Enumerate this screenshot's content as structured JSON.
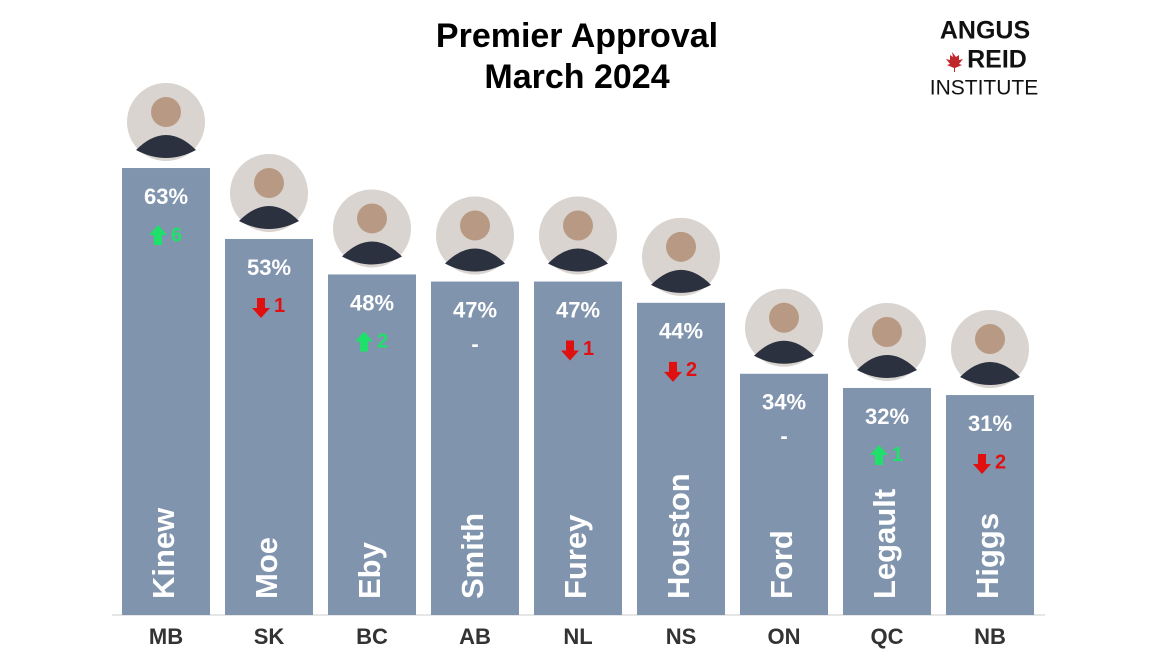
{
  "chart_data": {
    "type": "bar",
    "title": [
      "Premier Approval",
      "March 2024"
    ],
    "brand": [
      "ANGUS",
      "REID",
      "INSTITUTE"
    ],
    "categories": [
      "MB",
      "SK",
      "BC",
      "AB",
      "NL",
      "NS",
      "ON",
      "QC",
      "NB"
    ],
    "names": [
      "Kinew",
      "Moe",
      "Eby",
      "Smith",
      "Furey",
      "Houston",
      "Ford",
      "Legault",
      "Higgs"
    ],
    "values": [
      63,
      53,
      48,
      47,
      47,
      44,
      34,
      32,
      31
    ],
    "value_labels": [
      "63%",
      "53%",
      "48%",
      "47%",
      "47%",
      "44%",
      "34%",
      "32%",
      "31%"
    ],
    "changes": [
      6,
      -1,
      2,
      0,
      -1,
      -2,
      0,
      1,
      -2
    ],
    "change_labels": [
      "6",
      "1",
      "2",
      "-",
      "1",
      "2",
      "-",
      "1",
      "2"
    ],
    "color": "#8094ae",
    "up_color": "#1fe06a",
    "down_color": "#e01010"
  }
}
